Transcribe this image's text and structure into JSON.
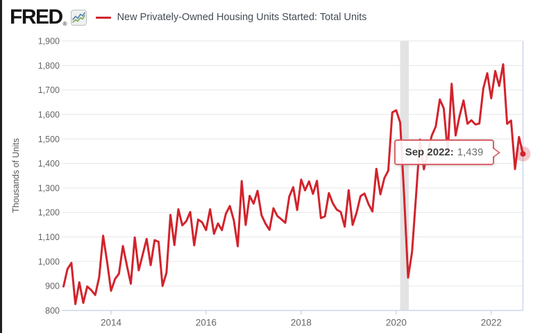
{
  "page": {
    "left_edge_color": "#202020",
    "background": "#ffffff"
  },
  "header": {
    "logo_text": "FRED",
    "logo_reg": "®",
    "legend": {
      "dash_color": "#d2232c",
      "label": "New Privately-Owned Housing Units Started: Total Units"
    }
  },
  "tooltip": {
    "date_label": "Sep 2022:",
    "value": "1,439"
  },
  "chart_data": {
    "type": "line",
    "title": "New Privately-Owned Housing Units Started: Total Units",
    "xlabel": "",
    "ylabel": "Thousands of Units",
    "ylim": [
      800,
      1900
    ],
    "grid": "horizontal",
    "legend_position": "top",
    "line_color": "#d2232c",
    "gridline_color": "#e6e6e6",
    "axis_color": "#ccd6eb",
    "band_color": "#e3e3e3",
    "tick_label_color": "#666666",
    "start_date": "2013-01",
    "end_date": "2022-09",
    "frequency": "monthly",
    "x_tick_years": [
      2014,
      2016,
      2018,
      2020,
      2022
    ],
    "y_tick_labels": [
      "800",
      "900",
      "1,000",
      "1,100",
      "1,200",
      "1,300",
      "1,400",
      "1,500",
      "1,600",
      "1,700",
      "1,800",
      "1,900"
    ],
    "recession_band": {
      "start": "2020-02",
      "end": "2020-04"
    },
    "highlight_point": {
      "date": "Sep 2022",
      "value": 1439
    },
    "series": [
      {
        "name": "New Privately-Owned Housing Units Started: Total Units",
        "values": [
          898,
          969,
          994,
          826,
          915,
          831,
          898,
          883,
          863,
          936,
          1105,
          999,
          880,
          928,
          950,
          1063,
          984,
          909,
          1098,
          964,
          1028,
          1092,
          985,
          1087,
          1080,
          900,
          954,
          1190,
          1067,
          1213,
          1147,
          1164,
          1202,
          1066,
          1171,
          1160,
          1128,
          1213,
          1113,
          1155,
          1128,
          1195,
          1226,
          1168,
          1062,
          1328,
          1149,
          1268,
          1236,
          1288,
          1189,
          1154,
          1129,
          1217,
          1185,
          1172,
          1158,
          1265,
          1303,
          1210,
          1334,
          1290,
          1327,
          1276,
          1329,
          1177,
          1184,
          1279,
          1237,
          1211,
          1202,
          1142,
          1291,
          1149,
          1199,
          1267,
          1277,
          1235,
          1204,
          1378,
          1274,
          1340,
          1371,
          1608,
          1617,
          1567,
          1269,
          934,
          1038,
          1265,
          1497,
          1376,
          1448,
          1514,
          1551,
          1661,
          1625,
          1447,
          1725,
          1514,
          1594,
          1657,
          1562,
          1576,
          1559,
          1563,
          1706,
          1768,
          1666,
          1777,
          1716,
          1805,
          1562,
          1575,
          1377,
          1508,
          1439
        ]
      }
    ]
  }
}
